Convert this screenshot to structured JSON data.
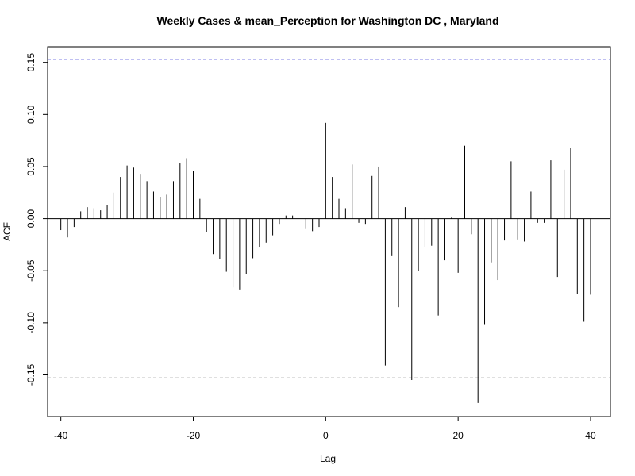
{
  "chart_data": {
    "type": "bar",
    "title": "Weekly Cases & mean_Perception for Washington DC , Maryland",
    "xlabel": "Lag",
    "ylabel": "ACF",
    "xlim": [
      -42,
      43
    ],
    "ylim": [
      -0.19,
      0.165
    ],
    "x_ticks": [
      -40,
      -20,
      0,
      20,
      40
    ],
    "y_ticks": [
      -0.15,
      -0.1,
      -0.05,
      0.0,
      0.05,
      0.1,
      0.15
    ],
    "x_tick_labels": [
      "-40",
      "-20",
      "0",
      "20",
      "40"
    ],
    "y_tick_labels": [
      "-0.15",
      "-0.10",
      "-0.05",
      "0.00",
      "0.05",
      "0.10",
      "0.15"
    ],
    "confidence_bound": 0.153,
    "confidence_color": "#0000cc",
    "confidence_lower_color": "#000000",
    "grid": false,
    "lags": [
      -40,
      -39,
      -38,
      -37,
      -36,
      -35,
      -34,
      -33,
      -32,
      -31,
      -30,
      -29,
      -28,
      -27,
      -26,
      -25,
      -24,
      -23,
      -22,
      -21,
      -20,
      -19,
      -18,
      -17,
      -16,
      -15,
      -14,
      -13,
      -12,
      -11,
      -10,
      -9,
      -8,
      -7,
      -6,
      -5,
      -4,
      -3,
      -2,
      -1,
      0,
      1,
      2,
      3,
      4,
      5,
      6,
      7,
      8,
      9,
      10,
      11,
      12,
      13,
      14,
      15,
      16,
      17,
      18,
      19,
      20,
      21,
      22,
      23,
      24,
      25,
      26,
      27,
      28,
      29,
      30,
      31,
      32,
      33,
      34,
      35,
      36,
      37,
      38,
      39,
      40
    ],
    "values": [
      -0.011,
      -0.018,
      -0.008,
      0.007,
      0.011,
      0.01,
      0.008,
      0.013,
      0.025,
      0.04,
      0.051,
      0.049,
      0.043,
      0.036,
      0.026,
      0.021,
      0.023,
      0.036,
      0.053,
      0.058,
      0.046,
      0.019,
      -0.013,
      -0.034,
      -0.039,
      -0.051,
      -0.066,
      -0.068,
      -0.053,
      -0.038,
      -0.027,
      -0.023,
      -0.016,
      -0.005,
      0.003,
      0.003,
      0.0,
      -0.01,
      -0.012,
      -0.008,
      0.092,
      0.04,
      0.019,
      0.01,
      0.052,
      -0.004,
      -0.005,
      0.041,
      0.05,
      -0.141,
      -0.036,
      -0.085,
      0.011,
      -0.155,
      -0.05,
      -0.027,
      -0.026,
      -0.093,
      -0.04,
      0.001,
      -0.052,
      0.07,
      -0.015,
      -0.177,
      -0.102,
      -0.042,
      -0.059,
      -0.021,
      0.055,
      -0.02,
      -0.022,
      0.026,
      -0.004,
      -0.004,
      0.056,
      -0.056,
      0.047,
      0.068,
      -0.072,
      -0.099,
      -0.073
    ]
  }
}
